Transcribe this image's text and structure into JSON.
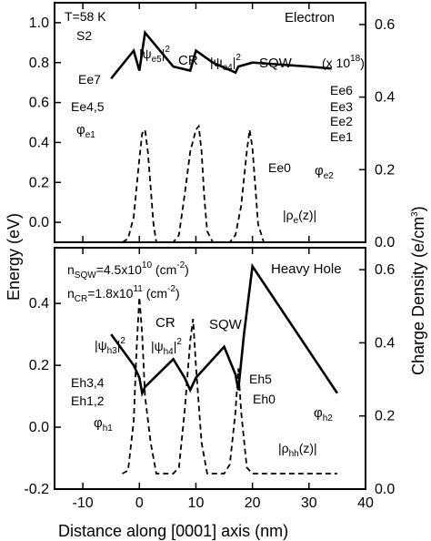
{
  "chart_data": [
    {
      "type": "line",
      "panel": "top",
      "xlabel": "Distance along [0001] axis (nm)",
      "ylabel_left": "Energy (eV)",
      "ylabel_right": "Charge Density (e/cm",
      "ylabel_right_sup": "3",
      "ylabel_right_close": ")",
      "xlim": [
        -15,
        40
      ],
      "ylim_left": [
        -0.1,
        1.1
      ],
      "ylim_right": [
        0,
        0.66
      ],
      "x_ticks": [
        "-10",
        "0",
        "10",
        "20",
        "30",
        "40"
      ],
      "y_ticks_left": [
        "0.0",
        "0.2",
        "0.4",
        "0.6",
        "0.8",
        "1.0"
      ],
      "y_ticks_right": [
        "0.0",
        "0.2",
        "0.4",
        "0.6"
      ],
      "annotations": {
        "temp": "T=58 K",
        "sample": "S2",
        "carrier": "Electron",
        "scale_prefix": "(x 10",
        "scale_exp": "18",
        "scale_suffix": ")",
        "cr": "CR",
        "sqw": "SQW",
        "psi_e5": "|ψ",
        "psi_e5_sub": "e5",
        "psi_e5_sup": "2",
        "psi_e4": "|ψ",
        "psi_e4_sub": "e4",
        "psi_e4_sup": "2",
        "ee7": "Ee7",
        "ee45": "Ee4,5",
        "ee6": "Ee6",
        "ee3": "Ee3",
        "ee2": "Ee2",
        "ee1": "Ee1",
        "ee0": "Ee0",
        "phi_e1": "φ",
        "phi_e1_sub": "e1",
        "phi_e2": "φ",
        "phi_e2_sub": "e2",
        "rho_e": "|ρ",
        "rho_e_sub": "e",
        "rho_e_tail": "(z)|"
      },
      "series": [
        {
          "name": "band",
          "points": [
            [
              -5,
              0.72
            ],
            [
              -1,
              0.86
            ],
            [
              0,
              0.76
            ],
            [
              1,
              0.95
            ],
            [
              6,
              0.78
            ],
            [
              9,
              0.76
            ],
            [
              10,
              0.86
            ],
            [
              13,
              0.8
            ],
            [
              17,
              0.75
            ],
            [
              17.5,
              0.78
            ],
            [
              20,
              0.8
            ],
            [
              30,
              0.78
            ],
            [
              34,
              0.77
            ]
          ]
        },
        {
          "name": "density",
          "points": [
            [
              -3,
              0
            ],
            [
              -2,
              0.01
            ],
            [
              -1,
              0.07
            ],
            [
              -0.5,
              0.15
            ],
            [
              0,
              0.23
            ],
            [
              0.5,
              0.3
            ],
            [
              1,
              0.31
            ],
            [
              1.5,
              0.25
            ],
            [
              2,
              0.15
            ],
            [
              2.5,
              0.05
            ],
            [
              3,
              0
            ],
            [
              6,
              0
            ],
            [
              7,
              0.02
            ],
            [
              8,
              0.13
            ],
            [
              9,
              0.25
            ],
            [
              10,
              0.31
            ],
            [
              10.5,
              0.32
            ],
            [
              11,
              0.25
            ],
            [
              11.5,
              0.12
            ],
            [
              12,
              0.03
            ],
            [
              13,
              0
            ],
            [
              16,
              0
            ],
            [
              17,
              0.02
            ],
            [
              18,
              0.1
            ],
            [
              19,
              0.25
            ],
            [
              19.5,
              0.31
            ],
            [
              20,
              0.26
            ],
            [
              21,
              0.05
            ],
            [
              22,
              0
            ],
            [
              27,
              0
            ]
          ]
        }
      ]
    },
    {
      "type": "line",
      "panel": "bottom",
      "xlim": [
        -15,
        40
      ],
      "ylim_left": [
        -0.2,
        0.58
      ],
      "ylim_right": [
        0,
        0.66
      ],
      "y_ticks_left": [
        "-0.2",
        "0.0",
        "0.2",
        "0.4"
      ],
      "y_ticks_right": [
        "0.0",
        "0.2",
        "0.4",
        "0.6"
      ],
      "annotations": {
        "n_sqw": "n",
        "n_sqw_sub": "SQW",
        "n_sqw_val": "=4.5x10",
        "n_sqw_exp": "10",
        "n_sqw_unit": " (cm",
        "n_sqw_unit_exp": "-2",
        "n_sqw_close": ")",
        "n_cr": "n",
        "n_cr_sub": "CR",
        "n_cr_val": "=1.8x10",
        "n_cr_exp": "11",
        "n_cr_unit": " (cm",
        "n_cr_unit_exp": "-2",
        "n_cr_close": ")",
        "carrier": "Heavy Hole",
        "cr": "CR",
        "sqw": "SQW",
        "psi_h3": "|ψ",
        "psi_h3_sub": "h3",
        "psi_h3_sup": "2",
        "psi_h4": "|ψ",
        "psi_h4_sub": "h4",
        "psi_h4_sup": "2",
        "eh34": "Eh3,4",
        "eh12": "Eh1,2",
        "eh5": "Eh5",
        "eh0": "Eh0",
        "phi_h1": "φ",
        "phi_h1_sub": "h1",
        "phi_h2": "φ",
        "phi_h2_sub": "h2",
        "rho_hh": "|ρ",
        "rho_hh_sub": "hh",
        "rho_hh_tail": "(z)|"
      },
      "series": [
        {
          "name": "band",
          "points": [
            [
              -5,
              0.3
            ],
            [
              -1,
              0.2
            ],
            [
              0,
              0.16
            ],
            [
              0.5,
              0.11
            ],
            [
              1,
              0.13
            ],
            [
              6,
              0.22
            ],
            [
              8,
              0.16
            ],
            [
              9,
              0.12
            ],
            [
              10,
              0.16
            ],
            [
              15,
              0.26
            ],
            [
              17,
              0.17
            ],
            [
              17.5,
              0.12
            ],
            [
              18.5,
              0.3
            ],
            [
              20,
              0.52
            ],
            [
              35,
              0.11
            ]
          ]
        },
        {
          "name": "density",
          "points": [
            [
              -3,
              -0.15
            ],
            [
              -2,
              -0.14
            ],
            [
              -1,
              0.02
            ],
            [
              -0.5,
              0.25
            ],
            [
              0,
              0.42
            ],
            [
              0.5,
              0.3
            ],
            [
              1,
              0.1
            ],
            [
              2,
              -0.05
            ],
            [
              3,
              -0.15
            ],
            [
              6,
              -0.15
            ],
            [
              7,
              -0.13
            ],
            [
              8,
              0.05
            ],
            [
              9,
              0.28
            ],
            [
              9.5,
              0.35
            ],
            [
              10,
              0.2
            ],
            [
              11,
              -0.05
            ],
            [
              12,
              -0.15
            ],
            [
              15,
              -0.15
            ],
            [
              16,
              -0.12
            ],
            [
              17,
              0.05
            ],
            [
              17.5,
              0.19
            ],
            [
              18,
              0.05
            ],
            [
              19,
              -0.13
            ],
            [
              20,
              -0.15
            ],
            [
              35,
              -0.15
            ]
          ]
        }
      ]
    }
  ]
}
